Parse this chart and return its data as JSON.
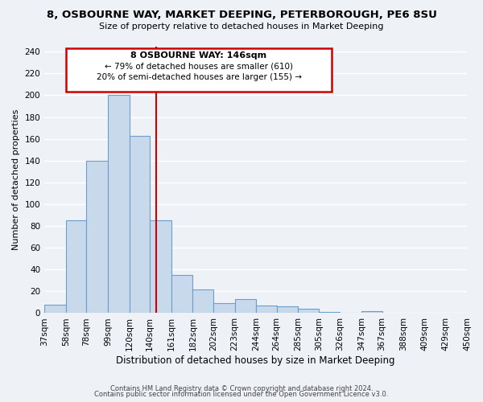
{
  "title": "8, OSBOURNE WAY, MARKET DEEPING, PETERBOROUGH, PE6 8SU",
  "subtitle": "Size of property relative to detached houses in Market Deeping",
  "xlabel": "Distribution of detached houses by size in Market Deeping",
  "ylabel": "Number of detached properties",
  "bar_heights": [
    8,
    85,
    140,
    200,
    163,
    85,
    35,
    22,
    9,
    13,
    7,
    6,
    4,
    1,
    0,
    2
  ],
  "bar_edges": [
    37,
    58,
    78,
    99,
    120,
    140,
    161,
    182,
    202,
    223,
    244,
    264,
    285,
    305,
    326,
    347,
    367
  ],
  "tick_labels": [
    "37sqm",
    "58sqm",
    "78sqm",
    "99sqm",
    "120sqm",
    "140sqm",
    "161sqm",
    "182sqm",
    "202sqm",
    "223sqm",
    "244sqm",
    "264sqm",
    "285sqm",
    "305sqm",
    "326sqm",
    "347sqm",
    "367sqm",
    "388sqm",
    "409sqm",
    "429sqm",
    "450sqm"
  ],
  "bar_color": "#c8d9ec",
  "bar_edgecolor": "#6b9ec8",
  "vline_x": 146,
  "vline_color": "#cc0000",
  "annotation_title": "8 OSBOURNE WAY: 146sqm",
  "annotation_line1": "← 79% of detached houses are smaller (610)",
  "annotation_line2": "20% of semi-detached houses are larger (155) →",
  "annotation_box_edgecolor": "#cc0000",
  "ylim": [
    0,
    245
  ],
  "xlim": [
    37,
    450
  ],
  "footer1": "Contains HM Land Registry data © Crown copyright and database right 2024.",
  "footer2": "Contains public sector information licensed under the Open Government Licence v3.0.",
  "bg_color": "#eef2f7",
  "grid_color": "#ffffff",
  "yticks": [
    0,
    20,
    40,
    60,
    80,
    100,
    120,
    140,
    160,
    180,
    200,
    220,
    240
  ]
}
